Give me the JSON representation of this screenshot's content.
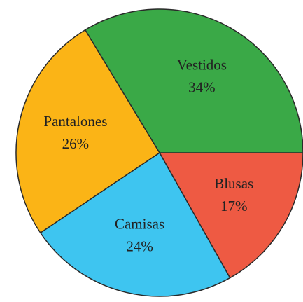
{
  "chart_data": {
    "type": "pie",
    "categories": [
      "Blusas",
      "Camisas",
      "Pantalones",
      "Vestidos"
    ],
    "values": [
      17,
      24,
      26,
      34
    ],
    "value_labels": [
      "17%",
      "24%",
      "26%",
      "34%"
    ],
    "colors": [
      "#ee5a43",
      "#3ec5f0",
      "#fbb416",
      "#3aa947"
    ]
  }
}
